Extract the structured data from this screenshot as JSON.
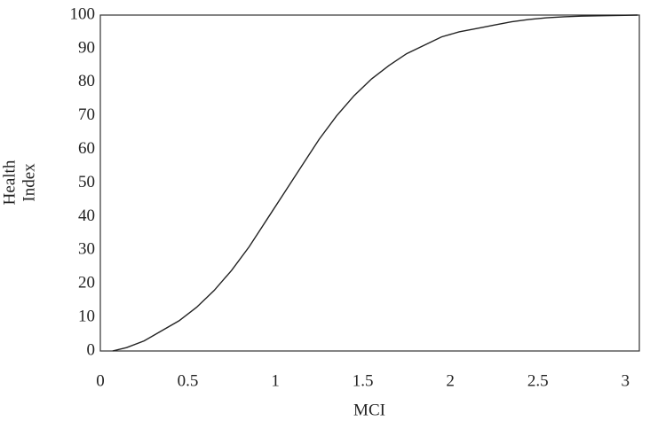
{
  "chart_data": {
    "type": "line",
    "x_label": "MCI",
    "y_label": [
      "Health",
      "Index"
    ],
    "x": [
      0.07,
      0.15,
      0.25,
      0.35,
      0.45,
      0.55,
      0.65,
      0.75,
      0.85,
      0.95,
      1.05,
      1.15,
      1.25,
      1.35,
      1.45,
      1.55,
      1.65,
      1.75,
      1.85,
      1.95,
      2.05,
      2.15,
      2.25,
      2.35,
      2.45,
      2.55,
      2.65,
      2.75,
      2.85,
      3.07
    ],
    "values": [
      0,
      1,
      3,
      6,
      9,
      13,
      18,
      24,
      31,
      39,
      47,
      55,
      63,
      70,
      76,
      81,
      85,
      88.5,
      91,
      93.5,
      95,
      96,
      97,
      98,
      98.7,
      99.2,
      99.5,
      99.7,
      99.8,
      100
    ],
    "color": "#222222",
    "xlim": [
      0,
      3.08
    ],
    "ylim": [
      0,
      100
    ],
    "xticks": [
      0,
      0.5,
      1,
      1.5,
      2,
      2.5,
      3
    ],
    "yticks": [
      0,
      10,
      20,
      30,
      40,
      50,
      60,
      70,
      80,
      90,
      100
    ],
    "grid": false
  }
}
